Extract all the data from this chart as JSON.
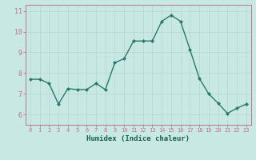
{
  "x": [
    0,
    1,
    2,
    3,
    4,
    5,
    6,
    7,
    8,
    9,
    10,
    11,
    12,
    13,
    14,
    15,
    16,
    17,
    18,
    19,
    20,
    21,
    22,
    23
  ],
  "y": [
    7.7,
    7.7,
    7.5,
    6.5,
    7.25,
    7.2,
    7.2,
    7.5,
    7.2,
    8.5,
    8.7,
    9.55,
    9.55,
    9.55,
    10.5,
    10.8,
    10.5,
    9.15,
    7.75,
    7.0,
    6.55,
    6.05,
    6.3,
    6.5
  ],
  "line_color": "#2a7a6a",
  "marker": "D",
  "marker_size": 2.0,
  "line_width": 1.0,
  "xlabel": "Humidex (Indice chaleur)",
  "xlabel_fontsize": 6.5,
  "tick_fontsize_x": 5.0,
  "tick_fontsize_y": 6.0,
  "background_color": "#c8e8e4",
  "grid_color": "#b8d8d4",
  "tick_color": "#c07090",
  "axis_color": "#c07090",
  "ylim": [
    5.5,
    11.3
  ],
  "xlim": [
    -0.5,
    23.5
  ],
  "yticks": [
    6,
    7,
    8,
    9,
    10,
    11
  ],
  "xticks": [
    0,
    1,
    2,
    3,
    4,
    5,
    6,
    7,
    8,
    9,
    10,
    11,
    12,
    13,
    14,
    15,
    16,
    17,
    18,
    19,
    20,
    21,
    22,
    23
  ]
}
